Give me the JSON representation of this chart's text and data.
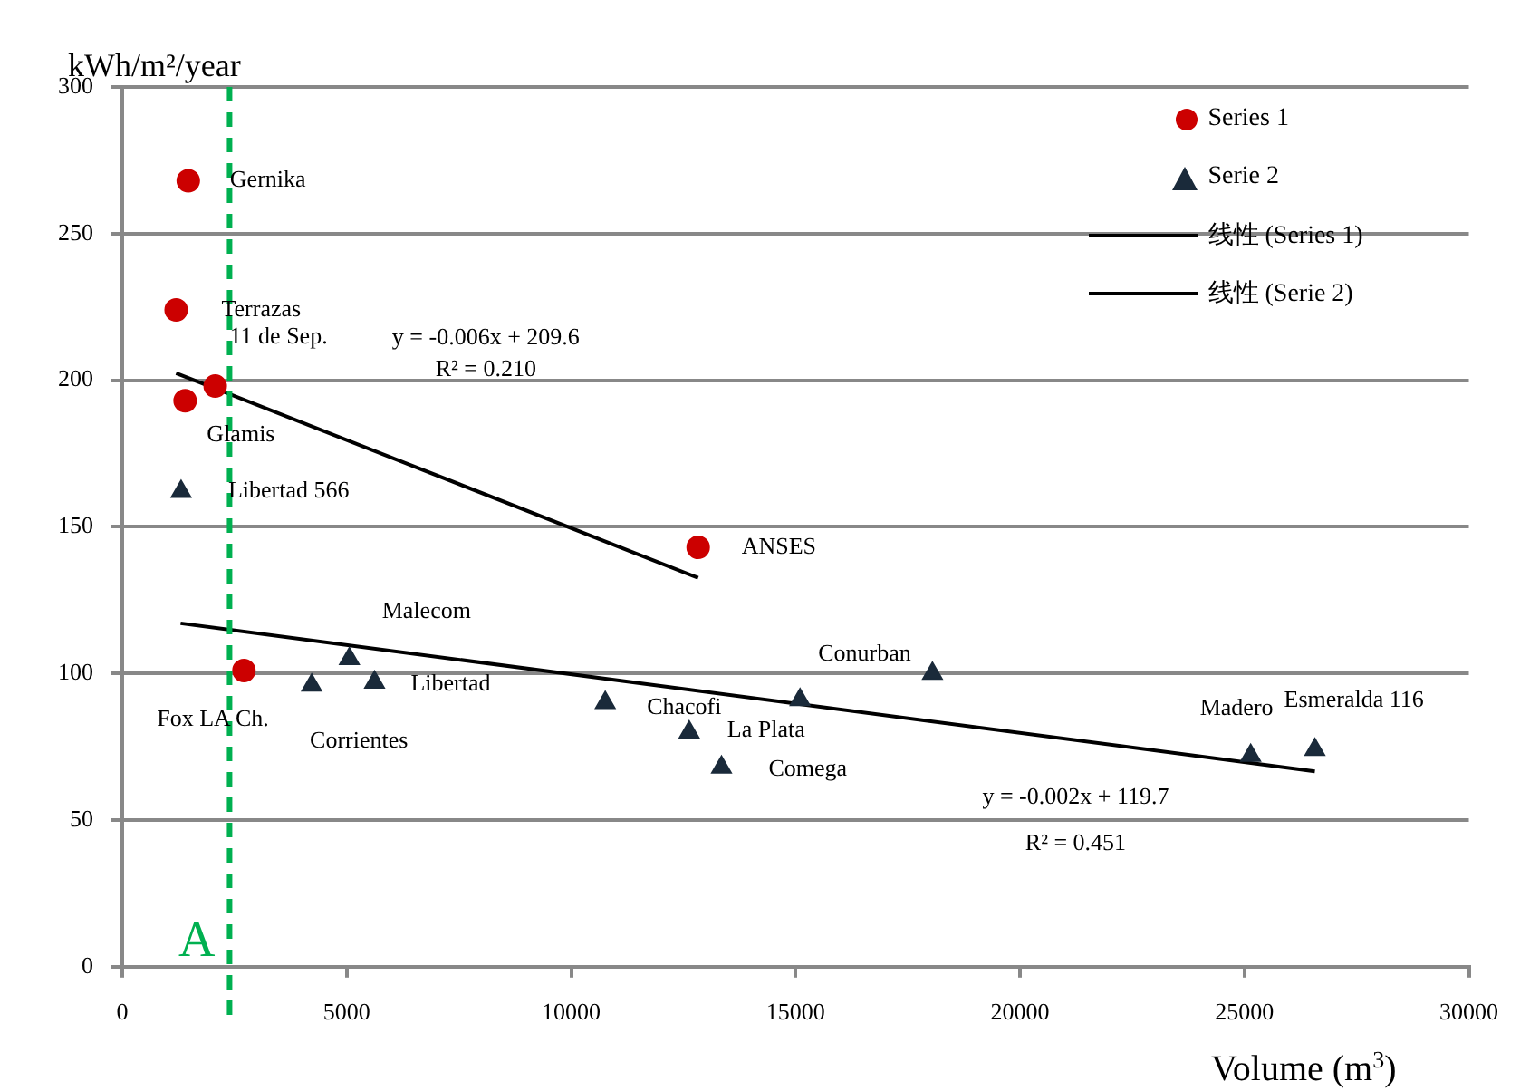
{
  "chart_data": {
    "type": "scatter",
    "xlabel": "Volume (m$^{3}$)",
    "ylabel": "kWh/m²/year",
    "xlim": [
      0,
      30000
    ],
    "xticks": [
      0,
      5000,
      10000,
      15000,
      20000,
      25000,
      30000
    ],
    "ylim": [
      0,
      300
    ],
    "yticks": [
      0,
      50,
      100,
      150,
      200,
      250,
      300
    ],
    "grid": "y",
    "legend": "top right",
    "series": [
      {
        "name": "Series 1",
        "type": "scatter",
        "marker": "circle",
        "color": "#cc0000",
        "x": [
          1470,
          1200,
          2070,
          1400,
          12830,
          2710
        ],
        "values": [
          268,
          224,
          198,
          193,
          143,
          101
        ]
      },
      {
        "name": "Serie 2",
        "type": "scatter",
        "marker": "triangle",
        "color": "#1a2a3a",
        "x": [
          1310,
          4220,
          5060,
          5620,
          10760,
          12630,
          13350,
          15100,
          18050,
          25140,
          26570
        ],
        "values": [
          162,
          96,
          105,
          97,
          90,
          80,
          68,
          91,
          100,
          72,
          74
        ]
      },
      {
        "name": "线性 (Series 1)",
        "type": "line",
        "marker": "none",
        "line_style": "solid",
        "color": "#000000",
        "x": [
          1200,
          12830
        ],
        "values": [
          202.4,
          132.6
        ]
      },
      {
        "name": "线性 (Serie 2)",
        "type": "line",
        "marker": "none",
        "line_style": "solid",
        "color": "#000000",
        "x": [
          1300,
          26570
        ],
        "values": [
          117.1,
          66.6
        ]
      }
    ],
    "ref_lines": [
      {
        "axis": "x",
        "value": 2390,
        "label": "A",
        "color": "#00b050",
        "line_style": "dashed"
      }
    ],
    "annotations": [
      {
        "text": "Gernika",
        "x": 1470,
        "y": 268
      },
      {
        "text": "Terrazas",
        "x": 1200,
        "y": 224
      },
      {
        "text": "11 de Sep.",
        "x": 2070,
        "y": 198
      },
      {
        "text": "Glamis",
        "x": 1400,
        "y": 193
      },
      {
        "text": "ANSES",
        "x": 12830,
        "y": 143
      },
      {
        "text": "Fox LA Ch.",
        "x": 2710,
        "y": 101
      },
      {
        "text": "Libertad 566",
        "x": 1310,
        "y": 162
      },
      {
        "text": "Malecom",
        "x": 5060,
        "y": 105
      },
      {
        "text": "Corrientes",
        "x": 4220,
        "y": 96
      },
      {
        "text": "Libertad",
        "x": 5620,
        "y": 97
      },
      {
        "text": "Chacofi",
        "x": 10760,
        "y": 90
      },
      {
        "text": "La Plata",
        "x": 12630,
        "y": 80
      },
      {
        "text": "Comega",
        "x": 13350,
        "y": 68
      },
      {
        "text": "Conurban",
        "x": 15100,
        "y": 91
      },
      {
        "text": "Madero",
        "x": 25140,
        "y": 72
      },
      {
        "text": "Esmeralda 116",
        "x": 26570,
        "y": 74
      },
      "y = -0.006x + 209.6",
      "R² = 0.210",
      "y = -0.002x + 119.7",
      "R² = 0.451"
    ]
  }
}
